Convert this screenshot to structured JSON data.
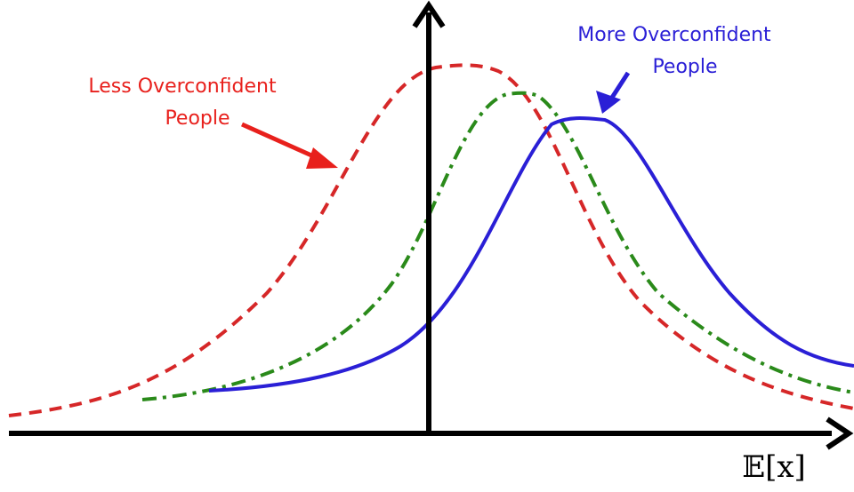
{
  "labels": {
    "less": {
      "line1": "Less Overconfident",
      "line2": "People"
    },
    "more": {
      "line1": "More Overconfident",
      "line2": "People"
    },
    "axis": "𝔼[x]"
  }
}
